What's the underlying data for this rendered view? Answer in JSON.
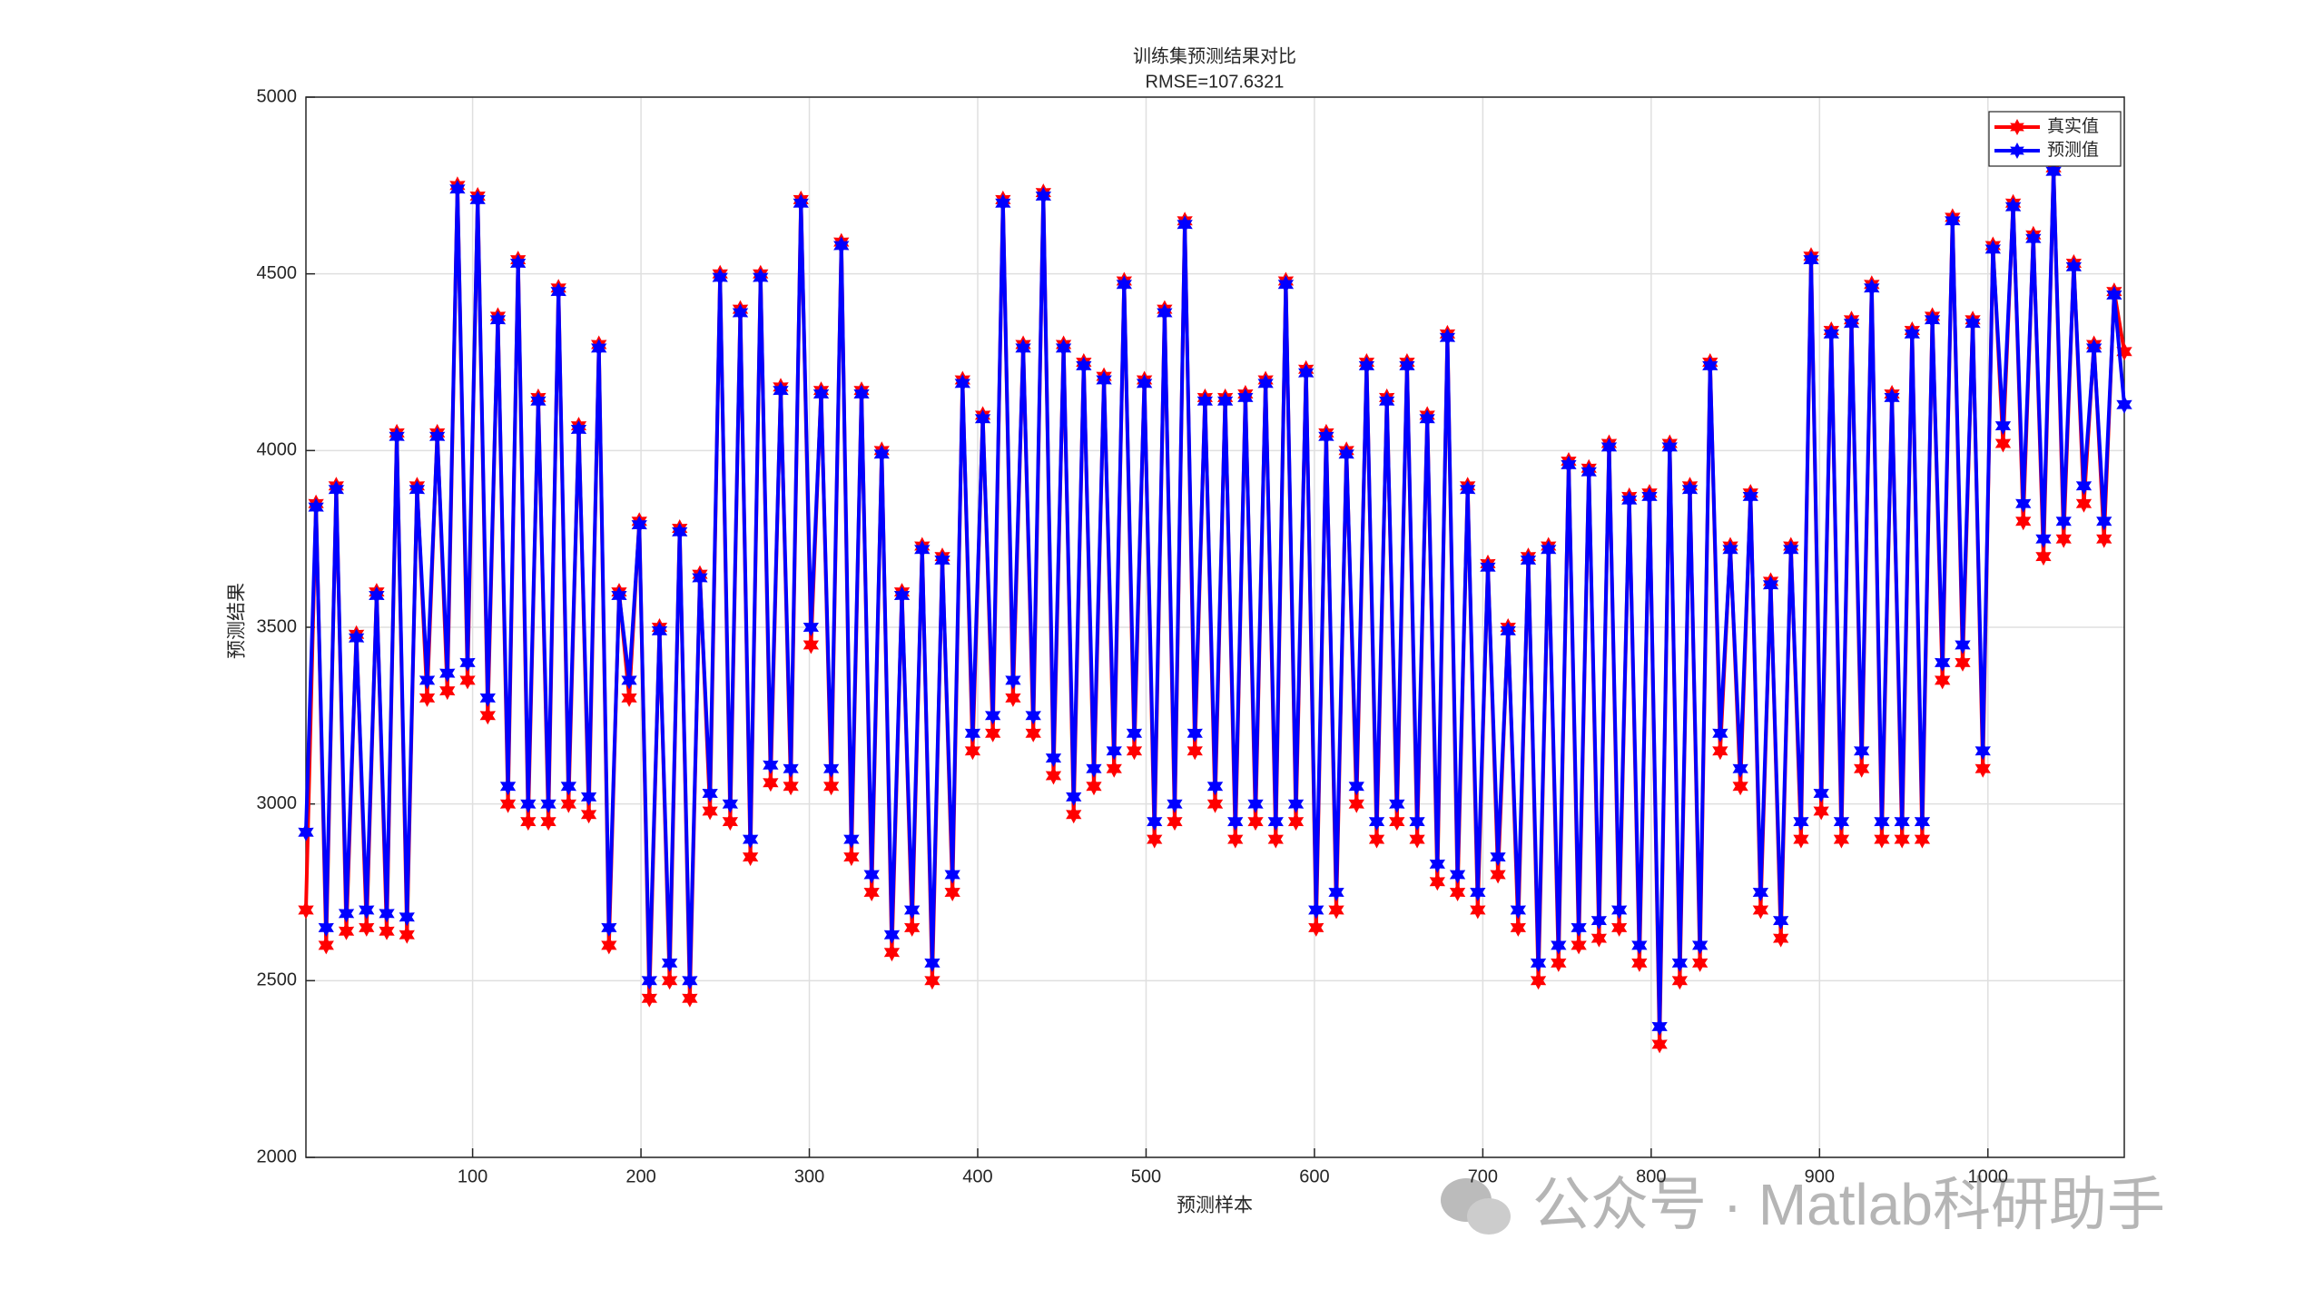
{
  "chart_data": {
    "type": "line",
    "title": "训练集预测结果对比",
    "subtitle": "RMSE=107.6321",
    "xlabel": "预测样本",
    "ylabel": "预测结果",
    "watermark": "公众号 · Matlab科研助手",
    "x": [
      1,
      7,
      13,
      19,
      25,
      31,
      37,
      43,
      49,
      55,
      61,
      67,
      73,
      79,
      85,
      91,
      97,
      103,
      109,
      115,
      121,
      127,
      133,
      139,
      145,
      151,
      157,
      163,
      169,
      175,
      181,
      187,
      193,
      199,
      205,
      211,
      217,
      223,
      229,
      235,
      241,
      247,
      253,
      259,
      265,
      271,
      277,
      283,
      289,
      295,
      301,
      307,
      313,
      319,
      325,
      331,
      337,
      343,
      349,
      355,
      361,
      367,
      373,
      379,
      385,
      391,
      397,
      403,
      409,
      415,
      421,
      427,
      433,
      439,
      445,
      451,
      457,
      463,
      469,
      475,
      481,
      487,
      493,
      499,
      505,
      511,
      517,
      523,
      529,
      535,
      541,
      547,
      553,
      559,
      565,
      571,
      577,
      583,
      589,
      595,
      601,
      607,
      613,
      619,
      625,
      631,
      637,
      643,
      649,
      655,
      661,
      667,
      673,
      679,
      685,
      691,
      697,
      703,
      709,
      715,
      721,
      727,
      733,
      739,
      745,
      751,
      757,
      763,
      769,
      775,
      781,
      787,
      793,
      799,
      805,
      811,
      817,
      823,
      829,
      835,
      841,
      847,
      853,
      859,
      865,
      871,
      877,
      883,
      889,
      895,
      901,
      907,
      913,
      919,
      925,
      931,
      937,
      943,
      949,
      955,
      961,
      967,
      973,
      979,
      985,
      991,
      997,
      1003,
      1009,
      1015,
      1021,
      1027,
      1033,
      1039,
      1045,
      1051,
      1057,
      1063,
      1069,
      1075,
      1081
    ],
    "series": [
      {
        "name": "真实值",
        "color": "#ff0000",
        "values": [
          2700,
          3850,
          2600,
          3900,
          2640,
          3480,
          2650,
          3600,
          2640,
          4050,
          2630,
          3900,
          3300,
          4050,
          3320,
          4750,
          3350,
          4720,
          3250,
          4380,
          3000,
          4540,
          2950,
          4150,
          2950,
          4460,
          3000,
          4070,
          2970,
          4300,
          2600,
          3600,
          3300,
          3800,
          2450,
          3500,
          2500,
          3780,
          2450,
          3650,
          2980,
          4500,
          2950,
          4400,
          2850,
          4500,
          3060,
          4180,
          3050,
          4710,
          3450,
          4170,
          3050,
          4590,
          2850,
          4170,
          2750,
          4000,
          2580,
          3600,
          2650,
          3730,
          2500,
          3700,
          2750,
          4200,
          3150,
          4100,
          3200,
          4710,
          3300,
          4300,
          3200,
          4730,
          3080,
          4300,
          2970,
          4250,
          3050,
          4210,
          3100,
          4480,
          3150,
          4200,
          2900,
          4400,
          2950,
          4650,
          3150,
          4150,
          3000,
          4150,
          2900,
          4160,
          2950,
          4200,
          2900,
          4480,
          2950,
          4230,
          2650,
          4050,
          2700,
          4000,
          3000,
          4250,
          2900,
          4150,
          2950,
          4250,
          2900,
          4100,
          2780,
          4330,
          2750,
          3900,
          2700,
          3680,
          2800,
          3500,
          2650,
          3700,
          2500,
          3730,
          2550,
          3970,
          2600,
          3950,
          2620,
          4020,
          2650,
          3870,
          2550,
          3880,
          2320,
          4020,
          2500,
          3900,
          2550,
          4250,
          3150,
          3730,
          3050,
          3880,
          2700,
          3630,
          2620,
          3730,
          2900,
          4550,
          2980,
          4340,
          2900,
          4370,
          3100,
          4470,
          2900,
          4160,
          2900,
          4340,
          2900,
          4380,
          3350,
          4660,
          3400,
          4370,
          3100,
          4580,
          4020,
          4700,
          3800,
          4610,
          3700,
          4800,
          3750,
          4530,
          3850,
          4300,
          3750,
          4450,
          4280
        ]
      },
      {
        "name": "预测值",
        "color": "#0000ff",
        "values": [
          2920,
          3840,
          2650,
          3890,
          2690,
          3470,
          2700,
          3590,
          2690,
          4040,
          2680,
          3890,
          3350,
          4040,
          3370,
          4740,
          3400,
          4710,
          3300,
          4370,
          3050,
          4530,
          3000,
          4140,
          3000,
          4450,
          3050,
          4060,
          3020,
          4290,
          2650,
          3590,
          3350,
          3790,
          2500,
          3490,
          2550,
          3770,
          2500,
          3640,
          3030,
          4490,
          3000,
          4390,
          2900,
          4490,
          3110,
          4170,
          3100,
          4700,
          3500,
          4160,
          3100,
          4580,
          2900,
          4160,
          2800,
          3990,
          2630,
          3590,
          2700,
          3720,
          2550,
          3690,
          2800,
          4190,
          3200,
          4090,
          3250,
          4700,
          3350,
          4290,
          3250,
          4720,
          3130,
          4290,
          3020,
          4240,
          3100,
          4200,
          3150,
          4470,
          3200,
          4190,
          2950,
          4390,
          3000,
          4640,
          3200,
          4140,
          3050,
          4140,
          2950,
          4150,
          3000,
          4190,
          2950,
          4470,
          3000,
          4220,
          2700,
          4040,
          2750,
          3990,
          3050,
          4240,
          2950,
          4140,
          3000,
          4240,
          2950,
          4090,
          2830,
          4320,
          2800,
          3890,
          2750,
          3670,
          2850,
          3490,
          2700,
          3690,
          2550,
          3720,
          2600,
          3960,
          2650,
          3940,
          2670,
          4010,
          2700,
          3860,
          2600,
          3870,
          2370,
          4010,
          2550,
          3890,
          2600,
          4240,
          3200,
          3720,
          3100,
          3870,
          2750,
          3620,
          2670,
          3720,
          2950,
          4540,
          3030,
          4330,
          2950,
          4360,
          3150,
          4460,
          2950,
          4150,
          2950,
          4330,
          2950,
          4370,
          3400,
          4650,
          3450,
          4360,
          3150,
          4570,
          4070,
          4690,
          3850,
          4600,
          3750,
          4790,
          3800,
          4520,
          3900,
          4290,
          3800,
          4440,
          4130
        ]
      }
    ],
    "xlim": [
      1,
      1081
    ],
    "xticks": [
      100,
      200,
      300,
      400,
      500,
      600,
      700,
      800,
      900,
      1000
    ],
    "ylim": [
      2000,
      5000
    ],
    "yticks": [
      2000,
      2500,
      3000,
      3500,
      4000,
      4500,
      5000
    ],
    "grid": true,
    "legend": "northeast"
  }
}
